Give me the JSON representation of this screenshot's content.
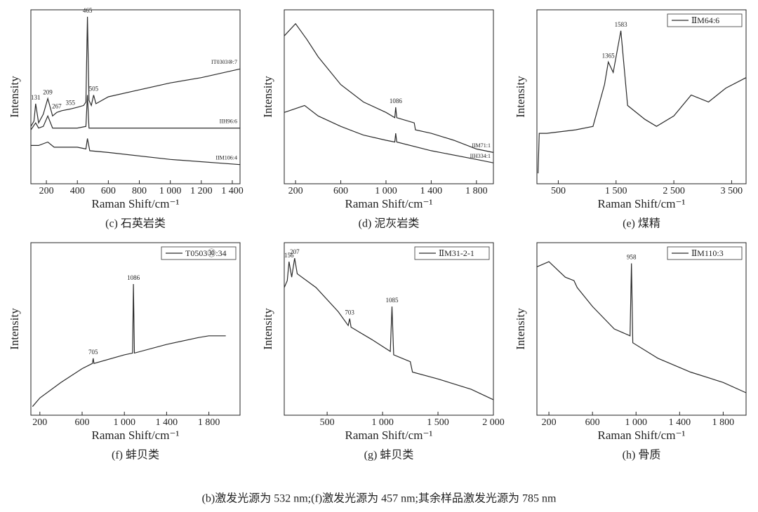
{
  "note": "(b)激发光源为 532 nm;(f)激发光源为 457 nm;其余样品激发光源为 785 nm",
  "chart_data": [
    {
      "type": "line",
      "caption": "(c) 石英岩类",
      "xlabel": "Raman Shift/cm⁻¹",
      "ylabel": "Intensity",
      "xlim": [
        100,
        1450
      ],
      "ylim": [
        0,
        100
      ],
      "xticks": [
        200,
        400,
        600,
        800,
        {
          "value": 1000,
          "label": "1 000"
        },
        {
          "value": 1200,
          "label": "1 200"
        },
        {
          "value": 1400,
          "label": "1 400"
        }
      ],
      "series_labels": "line end",
      "series": [
        {
          "name": "IT0303⑩:7",
          "color": "#2a2a2a",
          "x": [
            100,
            120,
            131,
            150,
            180,
            209,
            240,
            267,
            300,
            355,
            400,
            440,
            455,
            465,
            475,
            490,
            505,
            520,
            600,
            800,
            1000,
            1200,
            1450
          ],
          "values": [
            33,
            36,
            46,
            35,
            40,
            49,
            39,
            41,
            42,
            43,
            44,
            45,
            47,
            96,
            48,
            45,
            51,
            46,
            50,
            54,
            58,
            61,
            66
          ]
        },
        {
          "name": "IIH96:6",
          "color": "#2a2a2a",
          "x": [
            100,
            131,
            150,
            180,
            209,
            240,
            400,
            455,
            465,
            475,
            600,
            1000,
            1450
          ],
          "values": [
            31,
            35,
            32,
            33,
            39,
            32,
            32,
            33,
            51,
            32,
            32,
            32,
            32
          ]
        },
        {
          "name": "IIM106:4",
          "color": "#2a2a2a",
          "x": [
            100,
            150,
            209,
            250,
            400,
            455,
            465,
            480,
            600,
            1000,
            1450
          ],
          "values": [
            22,
            22,
            24,
            21,
            21,
            20,
            26,
            19,
            18,
            14,
            11
          ]
        }
      ],
      "peaks": [
        131,
        209,
        267,
        355,
        465,
        505
      ]
    },
    {
      "type": "line",
      "caption": "(d) 泥灰岩类",
      "xlabel": "Raman Shift/cm⁻¹",
      "ylabel": "Intensity",
      "xlim": [
        100,
        1950
      ],
      "ylim": [
        0,
        100
      ],
      "xticks": [
        200,
        600,
        {
          "value": 1000,
          "label": "1 000"
        },
        {
          "value": 1400,
          "label": "1 400"
        },
        {
          "value": 1800,
          "label": "1 800"
        }
      ],
      "series_labels": "line end",
      "series": [
        {
          "name": "IIM71:1",
          "color": "#2a2a2a",
          "x": [
            100,
            200,
            300,
            400,
            600,
            800,
            1000,
            1078,
            1086,
            1095,
            1250,
            1260,
            1400,
            1600,
            1800,
            1950
          ],
          "values": [
            85,
            92,
            83,
            73,
            57,
            47,
            41,
            38,
            44,
            38,
            35,
            31,
            29,
            25,
            20,
            18
          ]
        },
        {
          "name": "IIH334:1",
          "color": "#2a2a2a",
          "x": [
            100,
            280,
            400,
            600,
            800,
            1000,
            1078,
            1086,
            1095,
            1400,
            1800,
            1950
          ],
          "values": [
            41,
            45,
            39,
            33,
            28,
            25,
            24,
            29,
            24,
            19,
            14,
            12
          ]
        }
      ],
      "peaks": [
        1086
      ]
    },
    {
      "type": "line",
      "caption": "(e) 煤精",
      "xlabel": "Raman Shift/cm⁻¹",
      "ylabel": "Intensity",
      "xlim": [
        130,
        3750
      ],
      "ylim": [
        0,
        100
      ],
      "xticks": [
        500,
        {
          "value": 1500,
          "label": "1 500"
        },
        {
          "value": 2500,
          "label": "2 500"
        },
        {
          "value": 3500,
          "label": "3 500"
        }
      ],
      "legend": "upper right",
      "series": [
        {
          "name": "ⅡM64:6",
          "color": "#2a2a2a",
          "x": [
            150,
            170,
            300,
            800,
            1100,
            1300,
            1365,
            1450,
            1583,
            1700,
            2000,
            2200,
            2500,
            2800,
            3100,
            3400,
            3750
          ],
          "values": [
            6,
            29,
            29,
            31,
            33,
            57,
            70,
            64,
            88,
            45,
            37,
            33,
            39,
            51,
            47,
            55,
            61
          ]
        }
      ],
      "peaks": [
        1365,
        1583
      ]
    },
    {
      "type": "line",
      "caption": "(f) 蚌贝类",
      "xlabel": "Raman Shift/cm⁻¹",
      "ylabel": "Intensity",
      "xlim": [
        115,
        2095
      ],
      "ylim": [
        0,
        100
      ],
      "xticks": [
        200,
        600,
        {
          "value": 1000,
          "label": "1 000"
        },
        {
          "value": 1400,
          "label": "1 400"
        },
        {
          "value": 1800,
          "label": "1 800"
        }
      ],
      "legend": "upper right",
      "series": [
        {
          "name": "T0503㉚:34",
          "color": "#2a2a2a",
          "x": [
            130,
            200,
            400,
            600,
            698,
            705,
            712,
            1000,
            1078,
            1086,
            1095,
            1400,
            1700,
            1800,
            1960
          ],
          "values": [
            5,
            10,
            19,
            27,
            30,
            33,
            30,
            35,
            36,
            76,
            36,
            41,
            45,
            46,
            46
          ]
        }
      ],
      "peaks": [
        705,
        1086
      ]
    },
    {
      "type": "line",
      "caption": "(g) 蚌贝类",
      "xlabel": "Raman Shift/cm⁻¹",
      "ylabel": "Intensity",
      "xlim": [
        113,
        2000
      ],
      "ylim": [
        0,
        100
      ],
      "xticks": [
        500,
        {
          "value": 1000,
          "label": "1 000"
        },
        {
          "value": 1500,
          "label": "1 500"
        },
        {
          "value": 2000,
          "label": "2 000"
        }
      ],
      "legend": "upper right",
      "series": [
        {
          "name": "ⅡM31-2-1",
          "color": "#2a2a2a",
          "x": [
            113,
            140,
            156,
            180,
            207,
            230,
            400,
            600,
            690,
            703,
            716,
            900,
            1070,
            1085,
            1100,
            1250,
            1270,
            1500,
            1800,
            2000
          ],
          "values": [
            74,
            78,
            89,
            80,
            91,
            82,
            74,
            60,
            52,
            56,
            51,
            44,
            37,
            63,
            35,
            31,
            25,
            21,
            15,
            9
          ]
        }
      ],
      "peaks": [
        156,
        207,
        703,
        1085
      ]
    },
    {
      "type": "line",
      "caption": "(h) 骨质",
      "xlabel": "Raman Shift/cm⁻¹",
      "ylabel": "Intensity",
      "xlim": [
        90,
        2010
      ],
      "ylim": [
        0,
        100
      ],
      "xticks": [
        200,
        600,
        {
          "value": 1000,
          "label": "1 000"
        },
        {
          "value": 1400,
          "label": "1 400"
        },
        {
          "value": 1800,
          "label": "1 800"
        }
      ],
      "legend": "upper right",
      "series": [
        {
          "name": "ⅡM110:3",
          "color": "#2a2a2a",
          "x": [
            90,
            200,
            350,
            430,
            460,
            600,
            800,
            945,
            958,
            970,
            1200,
            1500,
            1800,
            2010
          ],
          "values": [
            86,
            89,
            80,
            78,
            74,
            63,
            50,
            46,
            88,
            42,
            33,
            25,
            19,
            13
          ]
        }
      ],
      "peaks": [
        958
      ]
    }
  ]
}
